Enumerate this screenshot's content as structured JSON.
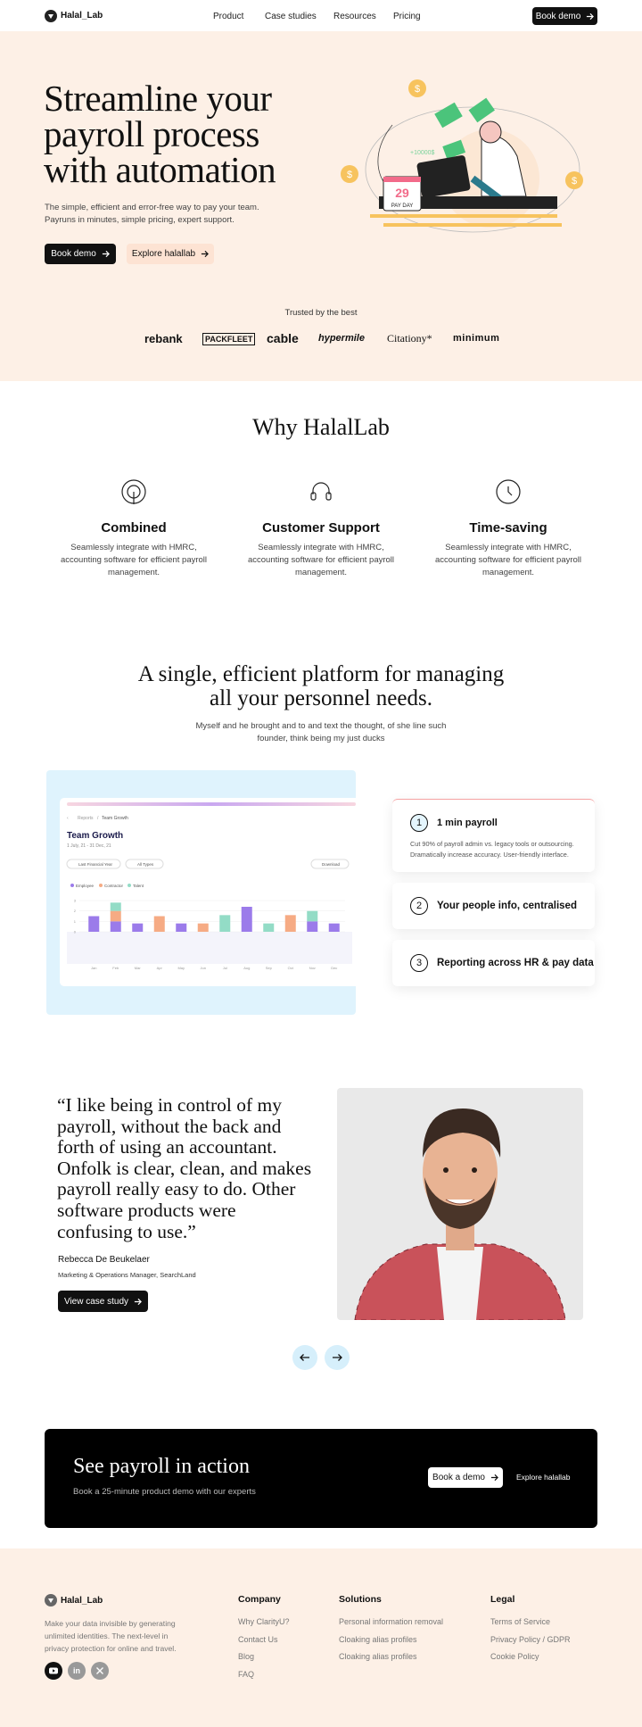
{
  "nav": {
    "logo": "Halal_Lab",
    "links": [
      "Product",
      "Case studies",
      "Resources",
      "Pricing"
    ],
    "button": "Book demo"
  },
  "hero": {
    "title_lines": [
      "Streamline your",
      "payroll process",
      "with automation"
    ],
    "subtitle_lines": [
      "The simple, efficient and error-free way to pay your team.",
      "Payruns in minutes, simple pricing, expert support."
    ],
    "primary_button": "Book demo",
    "secondary_button": "Explore halallab",
    "illustration": {
      "coin": "$",
      "date": "29",
      "label": "PAY DAY",
      "bonus": "+10000$"
    }
  },
  "trusted": {
    "title": "Trusted by the best",
    "logos": [
      "rebank",
      "PACKFLEET",
      "cable",
      "hypermile",
      "Citationy*",
      "minimum"
    ]
  },
  "why": {
    "title": "Why HalalLab",
    "items": [
      {
        "title": "Combined",
        "description": "Seamlessly integrate with HMRC, accounting software for efficient payroll management."
      },
      {
        "title": "Customer Support",
        "description": "Seamlessly integrate with HMRC, accounting software for efficient payroll management."
      },
      {
        "title": "Time-saving",
        "description": "Seamlessly integrate with HMRC, accounting software for efficient payroll management."
      }
    ]
  },
  "platform": {
    "title": "A single, efficient platform for managing all your personnel needs.",
    "subtitle": "Myself and he brought and to and text the thought, of she line such founder, think being my just ducks",
    "dashboard": {
      "breadcrumb": [
        "Reports",
        "Team Growth"
      ],
      "filters": [
        "Last Financial Year",
        "All Types"
      ],
      "download": "Download"
    },
    "features": [
      {
        "number": 1,
        "title": "1 min payroll",
        "description": "Cut 90% of payroll admin vs. legacy tools or outsourcing. Dramatically increase accuracy. User-friendly interface."
      },
      {
        "number": 2,
        "title": "Your people info, centralised"
      },
      {
        "number": 3,
        "title": "Reporting across HR & pay data"
      }
    ]
  },
  "chart_data": {
    "type": "bar",
    "stacked": true,
    "title": "Team Growth",
    "subtitle": "1 July, 21 - 31 Dec, 21",
    "categories": [
      "Jan",
      "Feb",
      "Mar",
      "Apr",
      "May",
      "Jun",
      "Jul",
      "Aug",
      "Sep",
      "Oct",
      "Nov",
      "Dec"
    ],
    "series": [
      {
        "name": "Employee",
        "color": "#9b7bea",
        "values": [
          1.5,
          1,
          0.8,
          0,
          0.8,
          0,
          0,
          2.4,
          0,
          0,
          1,
          0.8
        ]
      },
      {
        "name": "Contractor",
        "color": "#f6ab84",
        "values": [
          0,
          1,
          0,
          1.5,
          0,
          0.8,
          0,
          0,
          0,
          1.6,
          0,
          0
        ]
      },
      {
        "name": "Talent",
        "color": "#93dcc6",
        "values": [
          0,
          0.8,
          0,
          0,
          0,
          0,
          1.6,
          0,
          0.8,
          0,
          1,
          0
        ]
      }
    ],
    "ylim": [
      0,
      3
    ],
    "yticks": [
      0,
      1,
      2,
      3
    ],
    "grid": true
  },
  "testimonial": {
    "quote_lines": [
      "“I like being in control of my",
      "payroll, without the back and",
      "forth of using an accountant.",
      "Onfolk is clear, clean, and makes",
      "payroll really easy to do. Other",
      "software products were",
      "confusing to use.”"
    ],
    "name": "Rebecca De Beukelaer",
    "role": "Marketing & Operations Manager, SearchLand",
    "button": "View case study"
  },
  "cta": {
    "title": "See payroll in action",
    "subtitle": "Book a 25-minute product demo with our experts",
    "primary_button": "Book a demo",
    "secondary_button": "Explore halallab"
  },
  "footer": {
    "logo": "Halal_Lab",
    "description_lines": [
      "Make your data invisible by generating",
      "unlimited identities. The next-level in",
      "privacy protection for online and travel."
    ],
    "linkedin": "in",
    "columns": [
      {
        "title": "Company",
        "links": [
          "Why ClarityU?",
          "Contact Us",
          "Blog",
          "FAQ"
        ]
      },
      {
        "title": "Solutions",
        "links": [
          "Personal information removal",
          "Cloaking alias profiles",
          "Cloaking alias profiles"
        ]
      },
      {
        "title": "Legal",
        "links": [
          "Terms of Service",
          "Privacy Policy / GDPR",
          "Cookie Policy"
        ]
      }
    ]
  }
}
